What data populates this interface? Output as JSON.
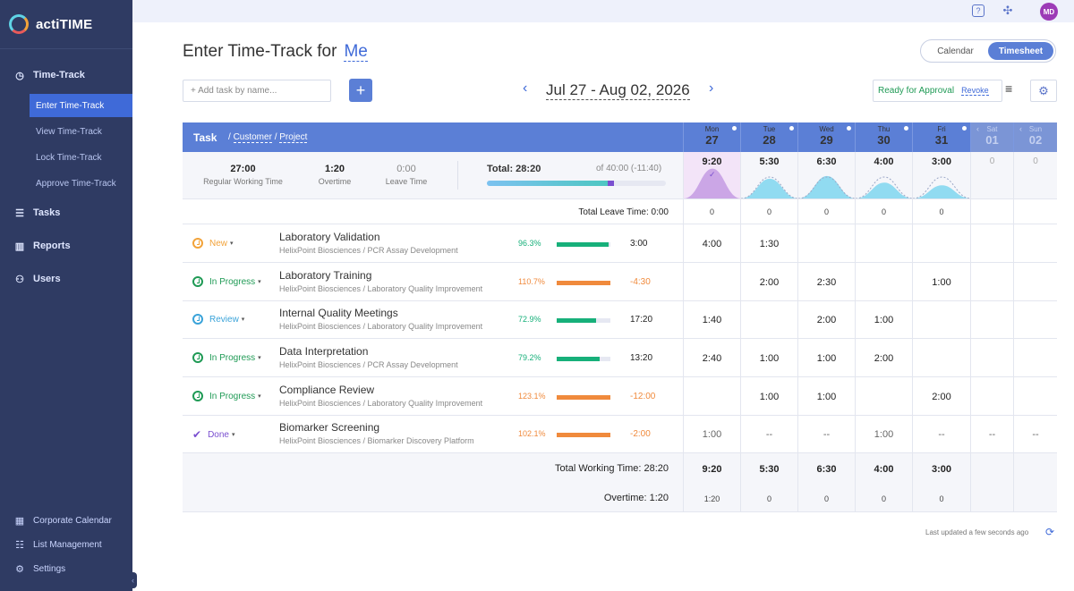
{
  "app": {
    "name": "actiTIME"
  },
  "sidebar": {
    "section": "Time-Track",
    "items": [
      "Enter Time-Track",
      "View Time-Track",
      "Lock Time-Track",
      "Approve Time-Track"
    ],
    "main": [
      "Tasks",
      "Reports",
      "Users"
    ],
    "bottom": [
      "Corporate Calendar",
      "List Management",
      "Settings"
    ]
  },
  "topbar": {
    "avatar": "MD"
  },
  "header": {
    "title": "Enter Time-Track for",
    "user": "Me",
    "view_options": [
      "Calendar",
      "Timesheet"
    ],
    "active_view": "Timesheet"
  },
  "toolbar": {
    "add_placeholder": "+ Add task by name...",
    "date_range": "Jul 27 - Aug 02, 2026",
    "approval_status": "Ready for Approval",
    "revoke": "Revoke"
  },
  "table": {
    "task_label": "Task",
    "customer_label": "Customer",
    "project_label": "Project",
    "days": [
      {
        "name": "Mon",
        "date": "27",
        "total": "9:20",
        "leave": "0",
        "overtime": "1:20"
      },
      {
        "name": "Tue",
        "date": "28",
        "total": "5:30",
        "leave": "0",
        "overtime": "0"
      },
      {
        "name": "Wed",
        "date": "29",
        "total": "6:30",
        "leave": "0",
        "overtime": "0"
      },
      {
        "name": "Thu",
        "date": "30",
        "total": "4:00",
        "leave": "0",
        "overtime": "0"
      },
      {
        "name": "Fri",
        "date": "31",
        "total": "3:00",
        "leave": "0",
        "overtime": "0"
      },
      {
        "name": "Sat",
        "date": "01",
        "total": "0"
      },
      {
        "name": "Sun",
        "date": "02",
        "total": "0"
      }
    ],
    "summary": {
      "regular": "27:00",
      "regular_label": "Regular Working Time",
      "overtime": "1:20",
      "overtime_label": "Overtime",
      "leave": "0:00",
      "leave_label": "Leave Time",
      "total": "Total: 28:20",
      "of": "of 40:00 (-11:40)"
    },
    "total_leave": "Total Leave Time: 0:00",
    "tasks": [
      {
        "status": "New",
        "name": "Laboratory Validation",
        "sub": "HelixPoint Biosciences / PCR Assay Development",
        "pct": "96.3%",
        "remaining": "3:00",
        "hours": [
          "4:00",
          "1:30",
          "",
          "",
          "",
          "",
          ""
        ]
      },
      {
        "status": "In Progress",
        "name": "Laboratory Training",
        "sub": "HelixPoint Biosciences / Laboratory Quality Improvement",
        "pct": "110.7%",
        "remaining": "-4:30",
        "hours": [
          "",
          "2:00",
          "2:30",
          "",
          "1:00",
          "",
          ""
        ]
      },
      {
        "status": "Review",
        "name": "Internal Quality Meetings",
        "sub": "HelixPoint Biosciences / Laboratory Quality Improvement",
        "pct": "72.9%",
        "remaining": "17:20",
        "hours": [
          "1:40",
          "",
          "2:00",
          "1:00",
          "",
          "",
          ""
        ]
      },
      {
        "status": "In Progress",
        "name": "Data Interpretation",
        "sub": "HelixPoint Biosciences / PCR Assay Development",
        "pct": "79.2%",
        "remaining": "13:20",
        "hours": [
          "2:40",
          "1:00",
          "1:00",
          "2:00",
          "",
          "",
          ""
        ]
      },
      {
        "status": "In Progress",
        "name": "Compliance Review",
        "sub": "HelixPoint Biosciences / Laboratory Quality Improvement",
        "pct": "123.1%",
        "remaining": "-12:00",
        "hours": [
          "",
          "1:00",
          "1:00",
          "",
          "2:00",
          "",
          ""
        ]
      },
      {
        "status": "Done",
        "name": "Biomarker Screening",
        "sub": "HelixPoint Biosciences / Biomarker Discovery Platform",
        "pct": "102.1%",
        "remaining": "-2:00",
        "hours": [
          "1:00",
          "--",
          "--",
          "1:00",
          "--",
          "--",
          "--"
        ]
      }
    ],
    "total_working": "Total Working Time: 28:20",
    "overtime_label": "Overtime: 1:20"
  },
  "footer": {
    "last_updated": "Last updated a few seconds ago"
  },
  "colors": {
    "sidebar": "#2f3b63",
    "accent": "#5b7fd6",
    "new": "#f2a33a",
    "in_progress": "#1f9a55",
    "review": "#3aa3d9",
    "done": "#7a4fd0",
    "bar_ok": "#17b07a",
    "bar_over": "#f08a3c"
  }
}
